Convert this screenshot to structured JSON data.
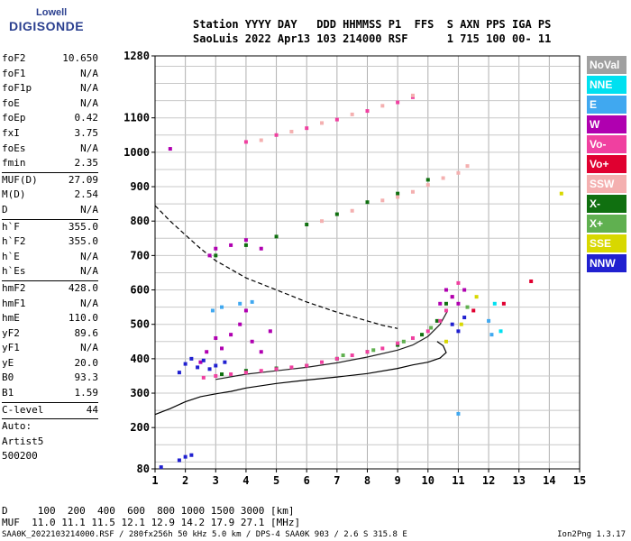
{
  "logo": {
    "line1": "Lowell",
    "line2": "DIGISONDE"
  },
  "header": {
    "line1": "Station YYYY DAY   DDD HHMMSS P1  FFS  S AXN PPS IGA PS",
    "line2": "SaoLuis 2022 Apr13 103 214000 RSF      1 715 100 00- 11"
  },
  "params": {
    "group1": [
      {
        "name": "foF2",
        "value": "10.650"
      },
      {
        "name": "foF1",
        "value": "N/A"
      },
      {
        "name": "foF1p",
        "value": "N/A"
      },
      {
        "name": "foE",
        "value": "N/A"
      },
      {
        "name": "foEp",
        "value": "0.42"
      },
      {
        "name": "fxI",
        "value": "3.75"
      },
      {
        "name": "foEs",
        "value": "N/A"
      },
      {
        "name": "fmin",
        "value": "2.35"
      }
    ],
    "group2": [
      {
        "name": "MUF(D)",
        "value": "27.09"
      },
      {
        "name": "M(D)",
        "value": "2.54"
      },
      {
        "name": "D",
        "value": "N/A"
      }
    ],
    "group3": [
      {
        "name": "h`F",
        "value": "355.0"
      },
      {
        "name": "h`F2",
        "value": "355.0"
      },
      {
        "name": "h`E",
        "value": "N/A"
      },
      {
        "name": "h`Es",
        "value": "N/A"
      }
    ],
    "group4": [
      {
        "name": "hmF2",
        "value": "428.0"
      },
      {
        "name": "hmF1",
        "value": "N/A"
      },
      {
        "name": "hmE",
        "value": "110.0"
      },
      {
        "name": "yF2",
        "value": "89.6"
      },
      {
        "name": "yF1",
        "value": "N/A"
      },
      {
        "name": "yE",
        "value": "20.0"
      },
      {
        "name": "B0",
        "value": "93.3"
      },
      {
        "name": "B1",
        "value": "1.59"
      }
    ],
    "clevel": {
      "name": "C-level",
      "value": "44"
    },
    "auto_label": "Auto:",
    "artist": "Artist5",
    "code": "500200"
  },
  "legend": [
    {
      "label": "NoVal",
      "color": "#a0a0a0"
    },
    {
      "label": "NNE",
      "color": "#00e0f0"
    },
    {
      "label": "E",
      "color": "#40a8f0"
    },
    {
      "label": "W",
      "color": "#b000b0"
    },
    {
      "label": "Vo-",
      "color": "#f040a0"
    },
    {
      "label": "Vo+",
      "color": "#e00030"
    },
    {
      "label": "SSW",
      "color": "#f4b0b0"
    },
    {
      "label": "X-",
      "color": "#107010"
    },
    {
      "label": "X+",
      "color": "#60b050"
    },
    {
      "label": "SSE",
      "color": "#d8d800"
    },
    {
      "label": "NNW",
      "color": "#2020d0"
    }
  ],
  "footer": {
    "line1": "D     100  200  400  600  800 1000 1500 3000 [km]",
    "line2": "MUF  11.0 11.1 11.5 12.1 12.9 14.2 17.9 27.1 [MHz]",
    "file": "SAA0K_2022103214000.RSF / 280fx256h 50 kHz 5.0 km / DPS-4 SAA0K 903 / 2.6 S 315.8 E",
    "version": "Ion2Png 1.3.17"
  },
  "chart_data": {
    "type": "scatter",
    "x_ticks": [
      1,
      2,
      3,
      4,
      5,
      6,
      7,
      8,
      9,
      10,
      11,
      12,
      13,
      14,
      15
    ],
    "xlim": [
      1,
      15
    ],
    "y_ticks": [
      80,
      200,
      300,
      400,
      500,
      600,
      700,
      800,
      900,
      1000,
      1100,
      1280
    ],
    "ylim": [
      80,
      1280
    ],
    "grid": true,
    "series": [
      {
        "name": "X-",
        "color": "#107010",
        "points": [
          [
            3.2,
            355
          ],
          [
            4.0,
            365
          ],
          [
            5.0,
            372
          ],
          [
            6.0,
            380
          ],
          [
            7.0,
            400
          ],
          [
            8.0,
            420
          ],
          [
            9.0,
            440
          ],
          [
            9.8,
            470
          ],
          [
            10.3,
            510
          ],
          [
            10.6,
            560
          ],
          [
            3.0,
            700
          ],
          [
            4.0,
            730
          ],
          [
            5.0,
            755
          ],
          [
            6.0,
            790
          ],
          [
            7.0,
            820
          ],
          [
            8.0,
            855
          ],
          [
            9.0,
            880
          ],
          [
            10.0,
            920
          ]
        ]
      },
      {
        "name": "Vo-",
        "color": "#f040a0",
        "points": [
          [
            2.6,
            345
          ],
          [
            3.0,
            350
          ],
          [
            3.5,
            355
          ],
          [
            4.0,
            360
          ],
          [
            4.5,
            365
          ],
          [
            5.0,
            370
          ],
          [
            5.5,
            375
          ],
          [
            6.0,
            380
          ],
          [
            6.5,
            390
          ],
          [
            7.0,
            400
          ],
          [
            7.5,
            410
          ],
          [
            8.0,
            420
          ],
          [
            8.5,
            430
          ],
          [
            9.0,
            445
          ],
          [
            9.5,
            460
          ],
          [
            10.0,
            480
          ],
          [
            10.4,
            510
          ],
          [
            10.6,
            540
          ],
          [
            10.8,
            580
          ],
          [
            11.0,
            620
          ],
          [
            4.0,
            1030
          ],
          [
            5.0,
            1050
          ],
          [
            6.0,
            1070
          ],
          [
            7.0,
            1095
          ],
          [
            8.0,
            1120
          ],
          [
            9.0,
            1145
          ],
          [
            9.5,
            1160
          ]
        ]
      },
      {
        "name": "SSW",
        "color": "#f4b0b0",
        "points": [
          [
            4.5,
            1035
          ],
          [
            5.5,
            1060
          ],
          [
            6.5,
            1085
          ],
          [
            7.5,
            1110
          ],
          [
            8.5,
            1135
          ],
          [
            9.5,
            1165
          ],
          [
            9.0,
            870
          ],
          [
            9.5,
            885
          ],
          [
            10.0,
            905
          ],
          [
            10.5,
            925
          ],
          [
            11.0,
            940
          ],
          [
            11.3,
            960
          ],
          [
            6.5,
            800
          ],
          [
            7.5,
            830
          ],
          [
            8.5,
            860
          ]
        ]
      },
      {
        "name": "W",
        "color": "#b000b0",
        "points": [
          [
            2.5,
            390
          ],
          [
            2.7,
            420
          ],
          [
            3.0,
            460
          ],
          [
            3.2,
            430
          ],
          [
            3.5,
            470
          ],
          [
            3.8,
            500
          ],
          [
            4.0,
            540
          ],
          [
            4.2,
            450
          ],
          [
            4.5,
            420
          ],
          [
            4.8,
            480
          ],
          [
            2.8,
            700
          ],
          [
            3.0,
            720
          ],
          [
            3.5,
            730
          ],
          [
            4.0,
            745
          ],
          [
            4.5,
            720
          ],
          [
            10.4,
            560
          ],
          [
            10.6,
            600
          ],
          [
            10.8,
            580
          ],
          [
            11.0,
            560
          ],
          [
            11.2,
            600
          ],
          [
            1.5,
            1010
          ]
        ]
      },
      {
        "name": "NNW",
        "color": "#2020d0",
        "points": [
          [
            1.8,
            360
          ],
          [
            2.0,
            385
          ],
          [
            2.2,
            400
          ],
          [
            2.4,
            375
          ],
          [
            2.6,
            395
          ],
          [
            2.8,
            370
          ],
          [
            3.0,
            380
          ],
          [
            3.3,
            390
          ],
          [
            1.8,
            105
          ],
          [
            2.0,
            115
          ],
          [
            2.2,
            120
          ],
          [
            1.2,
            85
          ],
          [
            10.8,
            500
          ],
          [
            11.0,
            480
          ],
          [
            11.2,
            520
          ]
        ]
      },
      {
        "name": "E",
        "color": "#40a8f0",
        "points": [
          [
            2.9,
            540
          ],
          [
            3.2,
            550
          ],
          [
            3.8,
            560
          ],
          [
            4.2,
            565
          ],
          [
            12.0,
            510
          ],
          [
            12.1,
            470
          ],
          [
            11.0,
            240
          ]
        ]
      },
      {
        "name": "NNE",
        "color": "#00e0f0",
        "points": [
          [
            12.2,
            560
          ],
          [
            12.4,
            480
          ]
        ]
      },
      {
        "name": "Vo+",
        "color": "#e00030",
        "points": [
          [
            11.5,
            540
          ],
          [
            12.5,
            560
          ],
          [
            13.4,
            625
          ]
        ]
      },
      {
        "name": "X+",
        "color": "#60b050",
        "points": [
          [
            7.2,
            410
          ],
          [
            8.2,
            425
          ],
          [
            9.2,
            450
          ],
          [
            10.1,
            490
          ],
          [
            11.3,
            550
          ]
        ]
      },
      {
        "name": "SSE",
        "color": "#d8d800",
        "points": [
          [
            10.6,
            450
          ],
          [
            11.1,
            500
          ],
          [
            11.6,
            580
          ],
          [
            14.4,
            880
          ]
        ]
      }
    ],
    "lines": [
      {
        "style": "solid",
        "points": [
          [
            1.0,
            238
          ],
          [
            1.5,
            255
          ],
          [
            2.0,
            275
          ],
          [
            2.5,
            290
          ],
          [
            3.0,
            298
          ],
          [
            3.5,
            305
          ],
          [
            4.0,
            315
          ],
          [
            5.0,
            328
          ],
          [
            6.0,
            338
          ],
          [
            7.0,
            347
          ],
          [
            8.0,
            357
          ],
          [
            9.0,
            372
          ],
          [
            9.5,
            382
          ],
          [
            10.0,
            390
          ],
          [
            10.4,
            402
          ],
          [
            10.6,
            418
          ],
          [
            10.5,
            438
          ],
          [
            10.3,
            450
          ]
        ]
      },
      {
        "style": "dashed",
        "points": [
          [
            1.0,
            845
          ],
          [
            1.5,
            800
          ],
          [
            2.0,
            760
          ],
          [
            2.5,
            720
          ],
          [
            3.0,
            685
          ],
          [
            3.5,
            660
          ],
          [
            4.0,
            635
          ],
          [
            5.0,
            600
          ],
          [
            6.0,
            565
          ],
          [
            7.0,
            535
          ],
          [
            8.0,
            510
          ],
          [
            8.5,
            497
          ],
          [
            9.0,
            488
          ]
        ]
      },
      {
        "style": "solid-profile",
        "points": [
          [
            3.0,
            340
          ],
          [
            4.0,
            355
          ],
          [
            5.0,
            365
          ],
          [
            6.0,
            375
          ],
          [
            7.0,
            388
          ],
          [
            8.0,
            405
          ],
          [
            9.0,
            425
          ],
          [
            9.5,
            440
          ],
          [
            10.0,
            465
          ],
          [
            10.4,
            500
          ],
          [
            10.65,
            540
          ]
        ]
      }
    ]
  }
}
